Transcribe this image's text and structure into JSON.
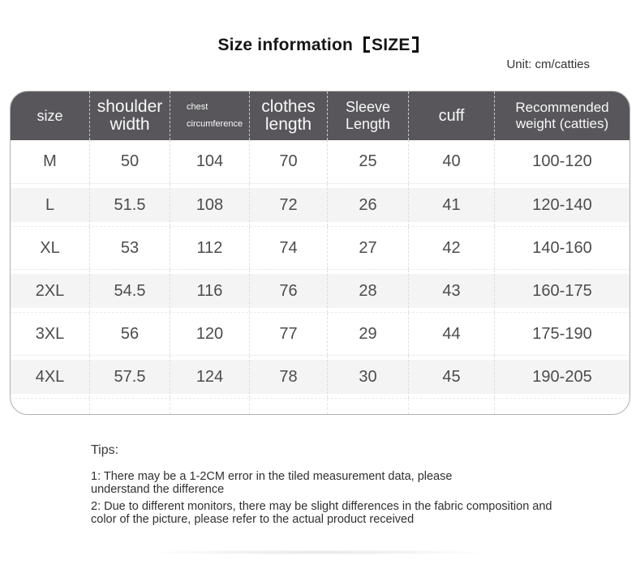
{
  "title": {
    "main": "Size information",
    "tag": "SIZE"
  },
  "unit_label": "Unit: cm/catties",
  "table": {
    "headers": [
      {
        "label": "size"
      },
      {
        "label": "shoulder width"
      },
      {
        "label": "chest circumference",
        "line1": "chest",
        "line2": "circumference"
      },
      {
        "label": "clothes length"
      },
      {
        "label": "Sleeve Length"
      },
      {
        "label": "cuff"
      },
      {
        "label": "Recommended weight (catties)"
      }
    ],
    "rows": [
      {
        "cells": [
          "M",
          "50",
          "104",
          "70",
          "25",
          "40",
          "100-120"
        ]
      },
      {
        "cells": [
          "L",
          "51.5",
          "108",
          "72",
          "26",
          "41",
          "120-140"
        ]
      },
      {
        "cells": [
          "XL",
          "53",
          "112",
          "74",
          "27",
          "42",
          "140-160"
        ]
      },
      {
        "cells": [
          "2XL",
          "54.5",
          "116",
          "76",
          "28",
          "43",
          "160-175"
        ]
      },
      {
        "cells": [
          "3XL",
          "56",
          "120",
          "77",
          "29",
          "44",
          "175-190"
        ]
      },
      {
        "cells": [
          "4XL",
          "57.5",
          "124",
          "78",
          "30",
          "45",
          "190-205"
        ]
      }
    ]
  },
  "tips": {
    "heading": "Tips:",
    "tip1": {
      "line1": "1: There may be a 1-2CM error in the tiled measurement data, please",
      "line2": "understand the difference"
    },
    "tip2": {
      "line1": "2: Due to different monitors, there may be slight differences in the fabric composition and",
      "line2": "color of the picture, please refer to the actual product received"
    }
  }
}
